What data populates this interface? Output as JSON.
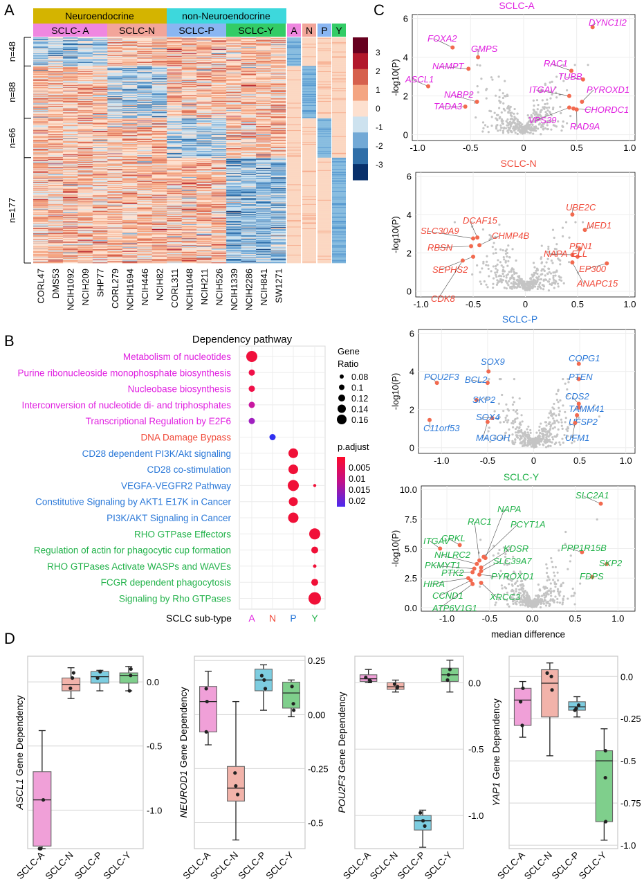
{
  "panel_labels": {
    "a": "A",
    "b": "B",
    "c": "C",
    "d": "D"
  },
  "heatmap": {
    "group_labels": [
      "Neuroendocrine",
      "non-Neuroendocrine"
    ],
    "subtype_labels": [
      "SCLC- A",
      "SCLC-N",
      "SCLC-P",
      "SCLC-Y"
    ],
    "annotation_labels": [
      "A",
      "N",
      "P",
      "Y"
    ],
    "row_groups": [
      "n=48",
      "n=88",
      "n=66",
      "n=177"
    ],
    "cell_lines": [
      "CORL47",
      "DMS53",
      "NCIH1092",
      "NCIH209",
      "SHP77",
      "CORL279",
      "NCIH1694",
      "NCIH446",
      "NCIH82",
      "CORL311",
      "NCIH1048",
      "NCIH211",
      "NCIH526",
      "NCIH1339",
      "NCIH2286",
      "NCIH841",
      "SW1271"
    ],
    "legend_ticks": [
      "3",
      "2",
      "1",
      "0",
      "-1",
      "-2",
      "-3"
    ],
    "colors": {
      "neuro": "#d4b400",
      "nonneuro": "#3dd8dc",
      "A": "#ef87e0",
      "N": "#f2a59a",
      "P": "#8ab6f2",
      "Y": "#33cc66"
    }
  },
  "dotplot": {
    "title": "Dependency pathway",
    "xlabel": "SCLC sub-type",
    "pathways": [
      {
        "name": "Metabolism of nucleotides",
        "color": "#e020e0"
      },
      {
        "name": "Purine ribonucleoside monophosphate biosynthesis",
        "color": "#e020e0"
      },
      {
        "name": "Nucleobase biosynthesis",
        "color": "#e020e0"
      },
      {
        "name": "Interconversion of nucleotide di- and triphosphates",
        "color": "#e020e0"
      },
      {
        "name": "Transcriptional Regulation by E2F6",
        "color": "#e020e0"
      },
      {
        "name": "DNA Damage Bypass",
        "color": "#f04a3a"
      },
      {
        "name": "CD28 dependent PI3K/Akt signaling",
        "color": "#2a78d8"
      },
      {
        "name": "CD28 co-stimulation",
        "color": "#2a78d8"
      },
      {
        "name": "VEGFA-VEGFR2 Pathway",
        "color": "#2a78d8"
      },
      {
        "name": "Constitutive Signaling by AKT1 E17K in Cancer",
        "color": "#2a78d8"
      },
      {
        "name": "PI3K/AKT Signaling in Cancer",
        "color": "#2a78d8"
      },
      {
        "name": "RHO GTPase Effectors",
        "color": "#22b24a"
      },
      {
        "name": "Regulation of actin for phagocytic cup formation",
        "color": "#22b24a"
      },
      {
        "name": "RHO GTPases Activate WASPs and WAVEs",
        "color": "#22b24a"
      },
      {
        "name": "FCGR dependent phagocytosis",
        "color": "#22b24a"
      },
      {
        "name": "Signaling by Rho GTPases",
        "color": "#22b24a"
      }
    ],
    "subtypes": [
      {
        "name": "A",
        "color": "#e020e0"
      },
      {
        "name": "N",
        "color": "#f04a3a"
      },
      {
        "name": "P",
        "color": "#2a78d8"
      },
      {
        "name": "Y",
        "color": "#22b24a"
      }
    ],
    "size_legend_title": [
      "Gene",
      "Ratio"
    ],
    "size_legend": [
      "0.08",
      "0.1",
      "0.12",
      "0.14",
      "0.16"
    ],
    "color_legend_title": "p.adjust",
    "color_legend": [
      "0.005",
      "0.01",
      "0.015",
      "0.02"
    ]
  },
  "chart_data": [
    {
      "type": "scatter",
      "title": "SCLC-A",
      "xlabel": "",
      "ylabel": "-log10(P)",
      "xlim": [
        -1.05,
        1.05
      ],
      "ylim": [
        -0.3,
        6.2
      ],
      "xticks": [
        "-1.0",
        "-0.5",
        "0",
        "0.5",
        "1.0"
      ],
      "yticks": [
        "0",
        "2",
        "4",
        "6"
      ],
      "color": "#e020e0",
      "highlight": [
        {
          "label": "DYNC1I2",
          "x": 0.65,
          "y": 5.55
        },
        {
          "label": "FOXA2",
          "x": -0.67,
          "y": 4.5
        },
        {
          "label": "GMPS",
          "x": -0.43,
          "y": 4.0
        },
        {
          "label": "NAMPT",
          "x": -0.52,
          "y": 3.4
        },
        {
          "label": "ASCL1",
          "x": -0.9,
          "y": 2.5
        },
        {
          "label": "RAC1",
          "x": 0.45,
          "y": 3.3
        },
        {
          "label": "TUBB",
          "x": 0.56,
          "y": 2.85
        },
        {
          "label": "ITGAV",
          "x": 0.43,
          "y": 2.0
        },
        {
          "label": "PYROXD1",
          "x": 0.55,
          "y": 1.7
        },
        {
          "label": "NABP2",
          "x": -0.44,
          "y": 1.7
        },
        {
          "label": "TADA3",
          "x": -0.55,
          "y": 1.45
        },
        {
          "label": "CHORDC1",
          "x": 0.47,
          "y": 1.35
        },
        {
          "label": "VPS39",
          "x": 0.43,
          "y": 1.4
        },
        {
          "label": "RAD9A",
          "x": 0.5,
          "y": 1.3
        }
      ]
    },
    {
      "type": "scatter",
      "title": "SCLC-N",
      "xlabel": "",
      "ylabel": "-log10(P)",
      "xlim": [
        -1.05,
        1.05
      ],
      "ylim": [
        -0.3,
        6.2
      ],
      "xticks": [
        "-1.0",
        "-0.5",
        "0",
        "0.5",
        "1.0"
      ],
      "yticks": [
        "0",
        "2",
        "4",
        "6"
      ],
      "color": "#f04a3a",
      "highlight": [
        {
          "label": "UBE2C",
          "x": 0.45,
          "y": 4.0
        },
        {
          "label": "MED1",
          "x": 0.57,
          "y": 3.2
        },
        {
          "label": "DCAF15",
          "x": -0.46,
          "y": 2.8
        },
        {
          "label": "SLC30A9",
          "x": -0.5,
          "y": 2.75
        },
        {
          "label": "CHMP4B",
          "x": -0.44,
          "y": 2.4
        },
        {
          "label": "RBSN",
          "x": -0.52,
          "y": 2.35
        },
        {
          "label": "PFN1",
          "x": 0.52,
          "y": 2.2
        },
        {
          "label": "NAPA",
          "x": 0.45,
          "y": 1.9
        },
        {
          "label": "ELL",
          "x": 0.5,
          "y": 1.8
        },
        {
          "label": "EP300",
          "x": 0.78,
          "y": 1.45
        },
        {
          "label": "SEPHS2",
          "x": -0.5,
          "y": 1.8
        },
        {
          "label": "CDK8",
          "x": -0.6,
          "y": 1.6
        },
        {
          "label": "ANAPC15",
          "x": 0.45,
          "y": 1.5
        }
      ]
    },
    {
      "type": "scatter",
      "title": "SCLC-P",
      "xlabel": "",
      "ylabel": "-log10(P)",
      "xlim": [
        -1.25,
        1.1
      ],
      "ylim": [
        -0.3,
        6.2
      ],
      "xticks": [
        "-1.0",
        "-0.5",
        "0",
        "0.5",
        "1.0"
      ],
      "yticks": [
        "0",
        "2",
        "4",
        "6"
      ],
      "color": "#2a78d8",
      "highlight": [
        {
          "label": "COPG1",
          "x": 0.49,
          "y": 4.4
        },
        {
          "label": "SOX9",
          "x": -0.49,
          "y": 4.0
        },
        {
          "label": "POU2F3",
          "x": -1.05,
          "y": 3.4
        },
        {
          "label": "BCL2",
          "x": -0.5,
          "y": 3.4
        },
        {
          "label": "PTEN",
          "x": 0.49,
          "y": 3.6
        },
        {
          "label": "SKP2",
          "x": -0.62,
          "y": 2.5
        },
        {
          "label": "CDS2",
          "x": 0.49,
          "y": 2.3
        },
        {
          "label": "TAMM41",
          "x": 0.49,
          "y": 2.1
        },
        {
          "label": "SOX4",
          "x": -0.45,
          "y": 1.55
        },
        {
          "label": "C11orf53",
          "x": -1.13,
          "y": 1.45
        },
        {
          "label": "UFSP2",
          "x": 0.47,
          "y": 1.7
        },
        {
          "label": "MAGOH",
          "x": -0.5,
          "y": 1.35
        },
        {
          "label": "UFM1",
          "x": 0.45,
          "y": 1.3
        }
      ]
    },
    {
      "type": "scatter",
      "title": "SCLC-Y",
      "xlabel": "median difference",
      "ylabel": "-log10(P)",
      "xlim": [
        -1.3,
        1.2
      ],
      "ylim": [
        -0.3,
        10.3
      ],
      "xticks": [
        "-1.0",
        "-0.5",
        "0.0",
        "0.5",
        "1.0"
      ],
      "yticks": [
        "0.0",
        "2.5",
        "5.0",
        "7.5",
        "10.0"
      ],
      "color": "#22b24a",
      "highlight": [
        {
          "label": "SLC2A1",
          "x": 0.8,
          "y": 8.8
        },
        {
          "label": "NAPA",
          "x": -0.55,
          "y": 4.2
        },
        {
          "label": "RAC1",
          "x": -0.62,
          "y": 4.0
        },
        {
          "label": "PCYT1A",
          "x": -0.57,
          "y": 4.3
        },
        {
          "label": "CRKL",
          "x": -0.85,
          "y": 5.3
        },
        {
          "label": "ITGAV",
          "x": -1.08,
          "y": 5.0
        },
        {
          "label": "NHLRC2",
          "x": -0.65,
          "y": 3.7
        },
        {
          "label": "KDSR",
          "x": -0.6,
          "y": 3.4
        },
        {
          "label": "PPP1R15B",
          "x": 0.58,
          "y": 4.7
        },
        {
          "label": "PKMYT1",
          "x": -0.68,
          "y": 3.3
        },
        {
          "label": "SLC39A7",
          "x": -0.6,
          "y": 3.1
        },
        {
          "label": "SKP2",
          "x": 0.87,
          "y": 3.7
        },
        {
          "label": "PTK2",
          "x": -0.7,
          "y": 3.0
        },
        {
          "label": "PYROXD1",
          "x": -0.62,
          "y": 2.8
        },
        {
          "label": "FDPS",
          "x": 0.7,
          "y": 2.6
        },
        {
          "label": "HIRA",
          "x": -0.75,
          "y": 2.5
        },
        {
          "label": "CCND1",
          "x": -0.72,
          "y": 2.3
        },
        {
          "label": "XRCC3",
          "x": -0.6,
          "y": 2.1
        },
        {
          "label": "ATP6V1G1",
          "x": -0.7,
          "y": 2.0
        }
      ]
    },
    {
      "type": "box",
      "ylabel_gene": "ASCL1",
      "ylabel_suffix": " Gene Dependency",
      "categories": [
        "SCLC-A",
        "SCLC-N",
        "SCLC-P",
        "SCLC-Y"
      ],
      "colors": [
        "#f0a0d8",
        "#f2b3aa",
        "#7dcde0",
        "#7fcf8c"
      ],
      "ylim": [
        -1.3,
        0.2
      ],
      "yticks": [
        0.0,
        -0.5,
        -1.0
      ],
      "ytick_labels": [
        "0.0",
        "-0.5",
        "-1.0"
      ],
      "boxes": [
        {
          "min": -1.3,
          "q1": -1.28,
          "median": -0.92,
          "q3": -0.7,
          "max": -0.38,
          "points": [
            -1.3,
            -0.92,
            -1.3
          ]
        },
        {
          "min": -0.13,
          "q1": -0.07,
          "median": -0.02,
          "q3": 0.03,
          "max": 0.11,
          "points": [
            0.07,
            -0.05,
            0.03
          ]
        },
        {
          "min": -0.07,
          "q1": -0.01,
          "median": 0.04,
          "q3": 0.08,
          "max": 0.09,
          "points": [
            0.08,
            0.03,
            0.08
          ]
        },
        {
          "min": -0.07,
          "q1": -0.01,
          "median": 0.05,
          "q3": 0.07,
          "max": 0.12,
          "points": [
            0.05,
            0.1,
            -0.07
          ]
        }
      ]
    },
    {
      "type": "box",
      "ylabel_gene": "NEUROD1",
      "ylabel_suffix": " Gene Dependency",
      "categories": [
        "SCLC-A",
        "SCLC-N",
        "SCLC-P",
        "SCLC-Y"
      ],
      "colors": [
        "#f0a0d8",
        "#f2b3aa",
        "#7dcde0",
        "#7fcf8c"
      ],
      "ylim": [
        -0.62,
        0.27
      ],
      "yticks": [
        0.25,
        0.0,
        -0.25,
        -0.5
      ],
      "ytick_labels": [
        "0.25",
        "0.00",
        "-0.25",
        "-0.5"
      ],
      "boxes": [
        {
          "min": -0.14,
          "q1": -0.08,
          "median": 0.06,
          "q3": 0.13,
          "max": 0.2,
          "points": [
            0.06,
            -0.08,
            0.12
          ]
        },
        {
          "min": -0.58,
          "q1": -0.4,
          "median": -0.34,
          "q3": -0.24,
          "max": 0.06,
          "points": [
            -0.33,
            -0.27,
            -0.37
          ]
        },
        {
          "min": 0.02,
          "q1": 0.11,
          "median": 0.16,
          "q3": 0.21,
          "max": 0.23,
          "points": [
            0.16,
            0.18,
            0.12
          ]
        },
        {
          "min": -0.01,
          "q1": 0.03,
          "median": 0.1,
          "q3": 0.15,
          "max": 0.16,
          "points": [
            0.05,
            0.13,
            0.02
          ]
        }
      ]
    },
    {
      "type": "box",
      "ylabel_gene": "POU2F3",
      "ylabel_suffix": " Gene Dependency",
      "categories": [
        "SCLC-A",
        "SCLC-N",
        "SCLC-P",
        "SCLC-Y"
      ],
      "colors": [
        "#f0a0d8",
        "#f2b3aa",
        "#7dcde0",
        "#7fcf8c"
      ],
      "ylim": [
        -1.25,
        0.2
      ],
      "yticks": [
        0.0,
        -0.5,
        -1.0
      ],
      "ytick_labels": [
        "0.0",
        "-0.5",
        "-1.0"
      ],
      "boxes": [
        {
          "min": 0.0,
          "q1": 0.01,
          "median": 0.03,
          "q3": 0.06,
          "max": 0.1,
          "points": [
            0.02,
            0.04,
            0.01
          ]
        },
        {
          "min": -0.07,
          "q1": -0.05,
          "median": -0.03,
          "q3": 0.0,
          "max": 0.02,
          "points": [
            -0.03,
            -0.04,
            -0.01
          ]
        },
        {
          "min": -1.24,
          "q1": -1.11,
          "median": -1.04,
          "q3": -1.0,
          "max": -0.96,
          "points": [
            -1.04,
            -0.98,
            -1.08
          ]
        },
        {
          "min": -0.07,
          "q1": 0.01,
          "median": 0.06,
          "q3": 0.11,
          "max": 0.17,
          "points": [
            0.1,
            0.06,
            0.02
          ]
        }
      ]
    },
    {
      "type": "box",
      "ylabel_gene": "YAP1",
      "ylabel_suffix": " Gene Dependency",
      "categories": [
        "SCLC-A",
        "SCLC-N",
        "SCLC-P",
        "SCLC-Y"
      ],
      "colors": [
        "#f0a0d8",
        "#f2b3aa",
        "#7dcde0",
        "#7fcf8c"
      ],
      "ylim": [
        -1.02,
        0.12
      ],
      "yticks": [
        0.0,
        -0.25,
        -0.5,
        -0.75,
        -1.0
      ],
      "ytick_labels": [
        "0.0",
        "-0.25",
        "-0.5",
        "-0.75",
        "-1.0"
      ],
      "boxes": [
        {
          "min": -0.36,
          "q1": -0.29,
          "median": -0.14,
          "q3": -0.07,
          "max": -0.03,
          "points": [
            -0.29,
            -0.07,
            -0.15
          ]
        },
        {
          "min": -0.47,
          "q1": -0.24,
          "median": -0.04,
          "q3": 0.04,
          "max": 0.08,
          "points": [
            0.02,
            0.0,
            -0.08
          ]
        },
        {
          "min": -0.24,
          "q1": -0.2,
          "median": -0.18,
          "q3": -0.15,
          "max": -0.12,
          "points": [
            -0.19,
            -0.17,
            -0.2
          ]
        },
        {
          "min": -0.97,
          "q1": -0.86,
          "median": -0.5,
          "q3": -0.44,
          "max": -0.31,
          "points": [
            -0.44,
            -0.6,
            -0.86
          ]
        }
      ]
    }
  ]
}
